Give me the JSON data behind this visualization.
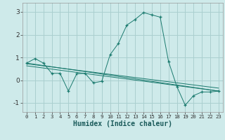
{
  "xlabel": "Humidex (Indice chaleur)",
  "background_color": "#ceeaea",
  "grid_color": "#aacfcf",
  "line_color": "#1a7a6e",
  "xlim": [
    -0.5,
    23.5
  ],
  "ylim": [
    -1.4,
    3.4
  ],
  "yticks": [
    -1,
    0,
    1,
    2,
    3
  ],
  "xticks": [
    0,
    1,
    2,
    3,
    4,
    5,
    6,
    7,
    8,
    9,
    10,
    11,
    12,
    13,
    14,
    15,
    16,
    17,
    18,
    19,
    20,
    21,
    22,
    23
  ],
  "series": [
    {
      "x": [
        0,
        1,
        2,
        3,
        4,
        5,
        6,
        7,
        8,
        9,
        10,
        11,
        12,
        13,
        14,
        15,
        16,
        17,
        18,
        19,
        20,
        21,
        22,
        23
      ],
      "y": [
        0.75,
        0.95,
        0.75,
        0.3,
        0.3,
        -0.48,
        0.28,
        0.3,
        -0.12,
        -0.05,
        1.12,
        1.62,
        2.42,
        2.67,
        2.97,
        2.87,
        2.77,
        0.82,
        -0.28,
        -1.1,
        -0.68,
        -0.52,
        -0.52,
        -0.48
      ],
      "marker": true
    },
    {
      "x": [
        0,
        23
      ],
      "y": [
        0.75,
        -0.48
      ]
    },
    {
      "x": [
        0,
        23
      ],
      "y": [
        0.72,
        -0.35
      ]
    },
    {
      "x": [
        0,
        23
      ],
      "y": [
        0.63,
        -0.48
      ]
    }
  ]
}
